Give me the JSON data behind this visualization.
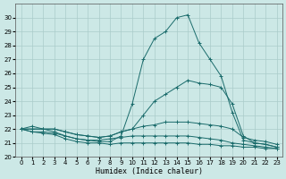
{
  "xlabel": "Humidex (Indice chaleur)",
  "ylabel": "",
  "xlim": [
    -0.5,
    23.5
  ],
  "ylim": [
    20,
    31
  ],
  "yticks": [
    20,
    21,
    22,
    23,
    24,
    25,
    26,
    27,
    28,
    29,
    30
  ],
  "xticks": [
    0,
    1,
    2,
    3,
    4,
    5,
    6,
    7,
    8,
    9,
    10,
    11,
    12,
    13,
    14,
    15,
    16,
    17,
    18,
    19,
    20,
    21,
    22,
    23
  ],
  "background_color": "#cce8e6",
  "grid_color": "#aaccca",
  "line_color": "#1a6b6b",
  "series": [
    [
      22.0,
      22.2,
      22.0,
      21.8,
      21.5,
      21.3,
      21.2,
      21.1,
      21.1,
      21.5,
      23.8,
      27.0,
      28.5,
      29.0,
      30.0,
      30.2,
      28.2,
      27.0,
      25.8,
      23.2,
      21.2,
      21.0,
      20.9,
      20.7
    ],
    [
      22.0,
      22.0,
      22.0,
      22.0,
      21.8,
      21.6,
      21.5,
      21.4,
      21.5,
      21.8,
      22.0,
      23.0,
      24.0,
      24.5,
      25.0,
      25.5,
      25.3,
      25.2,
      25.0,
      23.8,
      21.5,
      21.0,
      20.9,
      20.7
    ],
    [
      22.0,
      22.0,
      22.0,
      22.0,
      21.8,
      21.6,
      21.5,
      21.4,
      21.5,
      21.8,
      22.0,
      22.2,
      22.3,
      22.5,
      22.5,
      22.5,
      22.4,
      22.3,
      22.2,
      22.0,
      21.4,
      21.2,
      21.1,
      20.9
    ],
    [
      22.0,
      21.8,
      21.8,
      21.7,
      21.5,
      21.3,
      21.2,
      21.2,
      21.3,
      21.4,
      21.5,
      21.5,
      21.5,
      21.5,
      21.5,
      21.5,
      21.4,
      21.3,
      21.2,
      21.0,
      20.9,
      20.8,
      20.7,
      20.6
    ],
    [
      22.0,
      21.8,
      21.7,
      21.6,
      21.3,
      21.1,
      21.0,
      21.0,
      20.9,
      21.0,
      21.0,
      21.0,
      21.0,
      21.0,
      21.0,
      21.0,
      20.9,
      20.9,
      20.8,
      20.8,
      20.7,
      20.7,
      20.6,
      20.6
    ]
  ]
}
